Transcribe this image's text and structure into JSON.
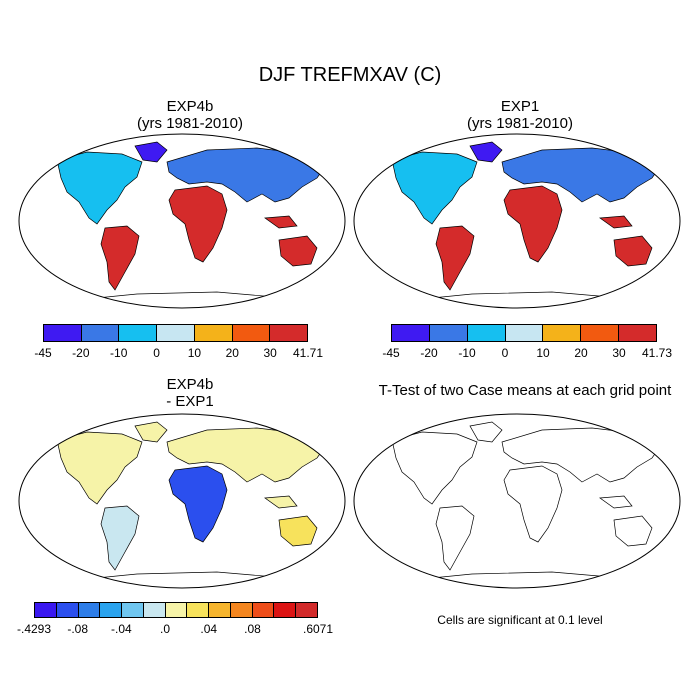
{
  "main_title": "DJF TREFMXAV (C)",
  "panels": {
    "p1": {
      "title_line1": "EXP4b",
      "title_line2": "(yrs 1981-2010)"
    },
    "p2": {
      "title_line1": "EXP1",
      "title_line2": "(yrs 1981-2010)"
    },
    "p3": {
      "title_line1": "EXP4b",
      "title_line2": "- EXP1"
    },
    "p4": {
      "title_line1": "T-Test of two Case means at each grid point"
    }
  },
  "colorbars": {
    "cb1": {
      "colors": [
        "#3f1af2",
        "#3a78e6",
        "#16bff0",
        "#c7e6f2",
        "#f4b21a",
        "#f25a10",
        "#d42b2b"
      ],
      "ticks": [
        "-45",
        "-20",
        "-10",
        "0",
        "10",
        "20",
        "30",
        "41.71"
      ]
    },
    "cb2": {
      "colors": [
        "#3f1af2",
        "#3a78e6",
        "#16bff0",
        "#c7e6f2",
        "#f4b21a",
        "#f25a10",
        "#d42b2b"
      ],
      "ticks": [
        "-45",
        "-20",
        "-10",
        "0",
        "10",
        "20",
        "30",
        "41.73"
      ]
    },
    "cb3": {
      "colors": [
        "#3a18f0",
        "#2b4fee",
        "#2d7de8",
        "#2aa3ee",
        "#6fc6f0",
        "#c9e7f0",
        "#f6f3a8",
        "#f7e25c",
        "#f6b52e",
        "#f4861f",
        "#ef4e1a",
        "#dc1414",
        "#d22a2a"
      ],
      "ticks": [
        "-.4293",
        "-.08",
        "-.04",
        ".0",
        ".04",
        ".08",
        ".6071"
      ]
    }
  },
  "note": "Cells are significant at 0.1 level",
  "chart_data": [
    {
      "type": "heatmap",
      "title": "EXP4b",
      "subtitle": "(yrs 1981-2010)",
      "colorbar_ticks": [
        "-45",
        "-20",
        "-10",
        "0",
        "10",
        "20",
        "30",
        "41.71"
      ],
      "range": [
        -45,
        41.71
      ]
    },
    {
      "type": "heatmap",
      "title": "EXP1",
      "subtitle": "(yrs 1981-2010)",
      "colorbar_ticks": [
        "-45",
        "-20",
        "-10",
        "0",
        "10",
        "20",
        "30",
        "41.73"
      ],
      "range": [
        -45,
        41.73
      ]
    },
    {
      "type": "heatmap",
      "title": "EXP4b - EXP1",
      "colorbar_ticks": [
        "-.4293",
        "-.08",
        "-.04",
        ".0",
        ".04",
        ".08",
        ".6071"
      ],
      "range": [
        -0.4293,
        0.6071
      ]
    },
    {
      "type": "heatmap",
      "title": "T-Test of two Case means at each grid point",
      "annotation": "Cells are significant at 0.1 level"
    }
  ]
}
